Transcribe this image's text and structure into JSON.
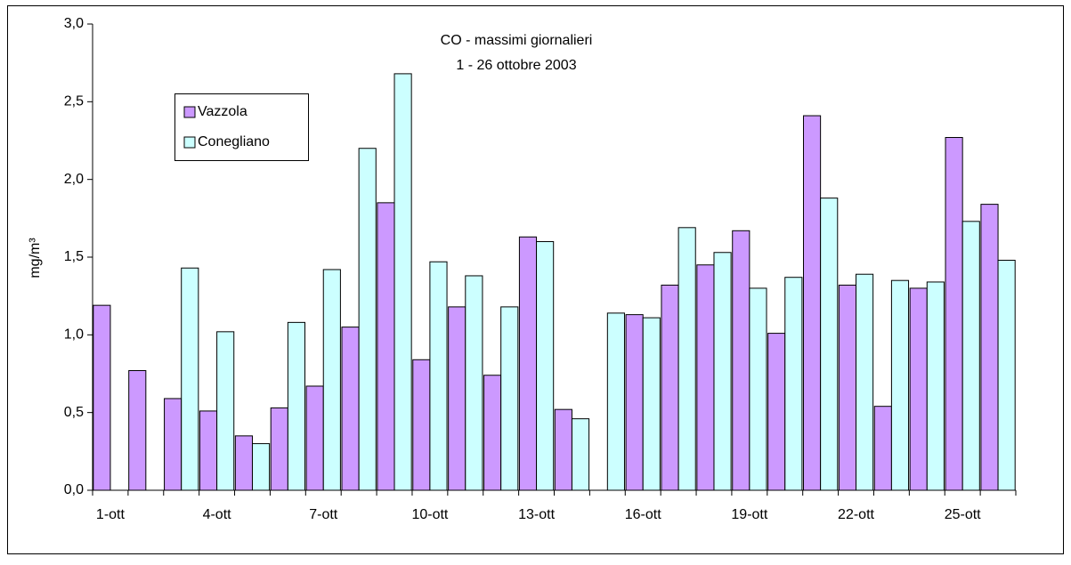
{
  "chart_data": {
    "type": "bar",
    "title": "CO - massimi giornalieri",
    "subtitle": "1 - 26 ottobre 2003",
    "y_label": "mg/m³",
    "categories": [
      "1-ott",
      null,
      null,
      "4-ott",
      null,
      null,
      "7-ott",
      null,
      null,
      "10-ott",
      null,
      null,
      "13-ott",
      null,
      null,
      "16-ott",
      null,
      null,
      "19-ott",
      null,
      null,
      "22-ott",
      null,
      null,
      "25-ott",
      null
    ],
    "series": [
      {
        "name": "Vazzola",
        "color": "#cc99ff",
        "values": [
          1.19,
          0.77,
          0.59,
          0.51,
          0.35,
          0.53,
          0.67,
          1.05,
          1.85,
          0.84,
          1.18,
          0.74,
          1.63,
          0.52,
          null,
          1.13,
          1.32,
          1.45,
          1.67,
          1.01,
          2.41,
          1.32,
          0.54,
          1.3,
          2.27,
          1.84
        ]
      },
      {
        "name": "Conegliano",
        "color": "#ccffff",
        "values": [
          null,
          null,
          1.43,
          1.02,
          0.3,
          1.08,
          1.42,
          2.2,
          2.68,
          1.47,
          1.38,
          1.18,
          1.6,
          0.46,
          1.14,
          1.11,
          1.69,
          1.53,
          1.3,
          1.37,
          1.88,
          1.39,
          1.35,
          1.34,
          1.73,
          1.48
        ]
      }
    ],
    "ylim": [
      0,
      3
    ],
    "yticks": [
      {
        "value": 0,
        "label": "0,0"
      },
      {
        "value": 0.5,
        "label": "0,5"
      },
      {
        "value": 1,
        "label": "1,0"
      },
      {
        "value": 1.5,
        "label": "1,5"
      },
      {
        "value": 2,
        "label": "2,0"
      },
      {
        "value": 2.5,
        "label": "2,5"
      },
      {
        "value": 3,
        "label": "3,0"
      }
    ],
    "grid": false,
    "legend": "upper-left"
  }
}
